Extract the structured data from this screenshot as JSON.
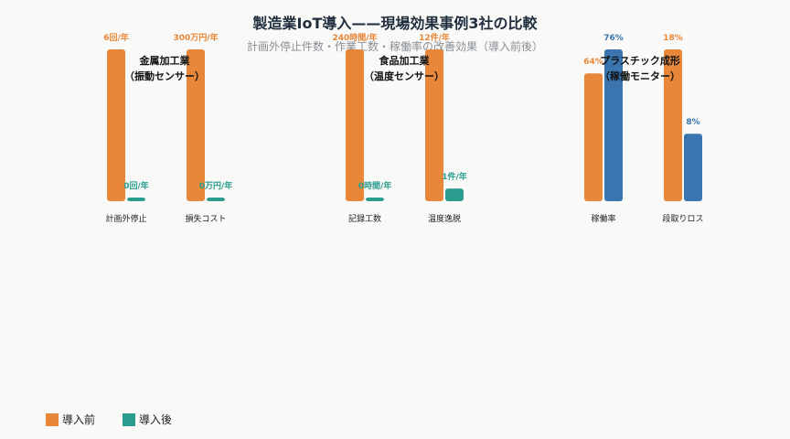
{
  "chart_data": {
    "type": "bar",
    "title": "製造業IoT導入——現場効果事例3社の比較",
    "subtitle": "計画外停止件数・作業工数・稼働率の改善効果（導入前後）",
    "groups": [
      {
        "name_lines": [
          "金属加工業",
          "（振動センサー）"
        ],
        "metrics": [
          {
            "label": "計画外停止",
            "unit": "回/年",
            "series": [
              {
                "key": "before",
                "value": 6,
                "text": "6回/年"
              },
              {
                "key": "after",
                "value": 0,
                "text": "0回/年"
              }
            ]
          },
          {
            "label": "損失コスト",
            "unit": "万円/年",
            "series": [
              {
                "key": "before",
                "value": 300,
                "text": "300万円/年"
              },
              {
                "key": "after",
                "value": 0,
                "text": "0万円/年"
              }
            ]
          }
        ]
      },
      {
        "name_lines": [
          "食品加工業",
          "（温度センサー）"
        ],
        "metrics": [
          {
            "label": "記録工数",
            "unit": "時間/年",
            "series": [
              {
                "key": "before",
                "value": 240,
                "text": "240時間/年"
              },
              {
                "key": "after",
                "value": 0,
                "text": "0時間/年"
              }
            ]
          },
          {
            "label": "温度逸脱",
            "unit": "件/年",
            "series": [
              {
                "key": "before",
                "value": 12,
                "text": "12件/年"
              },
              {
                "key": "after",
                "value": 1,
                "text": "1件/年"
              }
            ]
          }
        ]
      },
      {
        "name_lines": [
          "プラスチック成形",
          "（稼働モニター）"
        ],
        "metrics": [
          {
            "label": "稼働率",
            "unit": "%",
            "series": [
              {
                "key": "before",
                "value": 64,
                "text": "64%"
              },
              {
                "key": "after",
                "value": 76,
                "text": "76%"
              }
            ]
          },
          {
            "label": "段取りロス",
            "unit": "%",
            "series": [
              {
                "key": "before",
                "value": 18,
                "text": "18%"
              },
              {
                "key": "after",
                "value": 8,
                "text": "8%"
              }
            ]
          }
        ]
      }
    ],
    "legend": [
      {
        "key": "before",
        "label": "導入前",
        "color": "#e8873a"
      },
      {
        "key": "after",
        "label": "導入後",
        "color": "#2a9d8f"
      }
    ],
    "colors": {
      "before": "#e8873a",
      "after": "#2a9d8f",
      "after_alt": "#3a75b0"
    },
    "legend_position": "bottom-left",
    "grid": false
  }
}
